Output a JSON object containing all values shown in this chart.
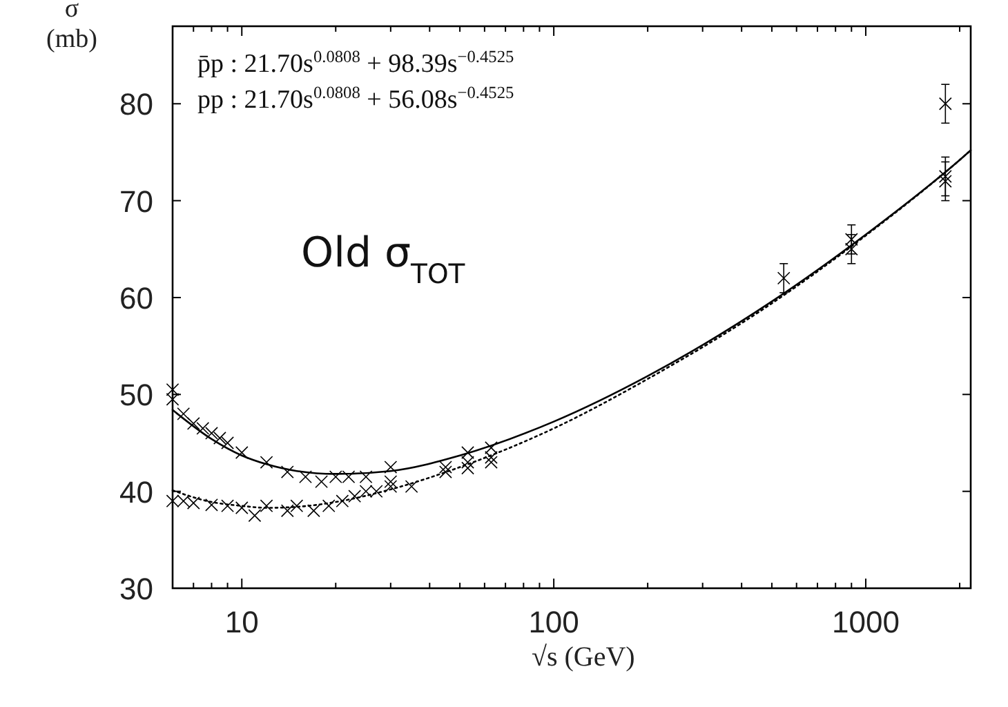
{
  "chart_data": {
    "type": "scatter",
    "xlabel": "√s (GeV)",
    "ylabel": "σ (mb)",
    "log": "x",
    "xlim": [
      6,
      2170
    ],
    "ylim": [
      30,
      88
    ],
    "xticks": [
      {
        "value": 7,
        "label": null
      },
      {
        "value": 8,
        "label": null
      },
      {
        "value": 9,
        "label": null
      },
      10,
      {
        "value": 20,
        "label": null
      },
      {
        "value": 30,
        "label": null
      },
      {
        "value": 40,
        "label": null
      },
      {
        "value": 50,
        "label": null
      },
      {
        "value": 60,
        "label": null
      },
      {
        "value": 70,
        "label": null
      },
      {
        "value": 80,
        "label": null
      },
      {
        "value": 90,
        "label": null
      },
      100,
      {
        "value": 200,
        "label": null
      },
      {
        "value": 300,
        "label": null
      },
      {
        "value": 400,
        "label": null
      },
      {
        "value": 500,
        "label": null
      },
      {
        "value": 600,
        "label": null
      },
      {
        "value": 700,
        "label": null
      },
      {
        "value": 800,
        "label": null
      },
      {
        "value": 900,
        "label": null
      },
      1000,
      {
        "value": 2000,
        "label": null
      }
    ],
    "yticks": [
      30,
      40,
      50,
      60,
      70,
      80
    ],
    "grid": false,
    "annotations": [
      "p̄p : 21.70s$^{0.0808}$ + 98.39s$^{−0.4525}$",
      "pp : 21.70s$^{0.0808}$ + 56.08s$^{−0.4525}$",
      "Old σ$_{TOT}$"
    ],
    "series": [
      {
        "type": "line",
        "color": "#000000",
        "line_style": "solid",
        "marker": "none",
        "x": [
          6,
          8,
          10,
          12,
          15,
          20,
          30,
          50,
          100,
          200,
          500,
          1000,
          2000,
          2170
        ],
        "values": [
          48.4,
          45.4,
          43.7,
          42.8,
          42.1,
          41.8,
          42.1,
          43.7,
          47.2,
          51.9,
          59.6,
          66.5,
          74.2,
          75.2
        ]
      },
      {
        "type": "line",
        "color": "#000000",
        "line_style": "dotted",
        "marker": "none",
        "x": [
          6,
          8,
          10,
          12,
          15,
          20,
          30,
          50,
          100,
          200,
          500,
          1000,
          2000,
          2170
        ],
        "values": [
          40.1,
          38.9,
          38.5,
          38.3,
          38.4,
          38.9,
          40.2,
          42.5,
          46.5,
          51.6,
          59.4,
          66.4,
          74.2,
          75.2
        ]
      },
      {
        "color": "#000000",
        "marker": "cross",
        "x": [
          6,
          6,
          6.5,
          7,
          7.5,
          8,
          8.5,
          9,
          10,
          12,
          14,
          16,
          18,
          20,
          22,
          25,
          30,
          30,
          45,
          53,
          53,
          63,
          63,
          546,
          900,
          900,
          1800,
          1800,
          1800
        ],
        "values": [
          49.5,
          50.5,
          48,
          47,
          46.5,
          46,
          45.5,
          45,
          44,
          43,
          42,
          41.5,
          41,
          41.5,
          41.5,
          41.5,
          42.5,
          41,
          42.5,
          44,
          43,
          44.5,
          43,
          62,
          66,
          65,
          80,
          72.5,
          72
        ],
        "errors": [
          null,
          null,
          null,
          null,
          null,
          null,
          null,
          null,
          null,
          null,
          null,
          null,
          null,
          null,
          null,
          null,
          null,
          null,
          null,
          null,
          null,
          null,
          null,
          1.5,
          1.5,
          1.5,
          2,
          2,
          2
        ]
      },
      {
        "color": "#000000",
        "marker": "cross",
        "x": [
          6,
          6.5,
          7,
          8,
          9,
          10,
          11,
          12,
          14,
          15,
          17,
          19,
          21,
          23,
          25,
          27,
          30,
          35,
          45,
          53,
          63
        ],
        "values": [
          39,
          39,
          38.8,
          38.6,
          38.5,
          38.3,
          37.5,
          38.5,
          38,
          38.5,
          38,
          38.5,
          39,
          39.5,
          40,
          40,
          40.5,
          40.5,
          42,
          42.4,
          43.5
        ]
      }
    ]
  }
}
